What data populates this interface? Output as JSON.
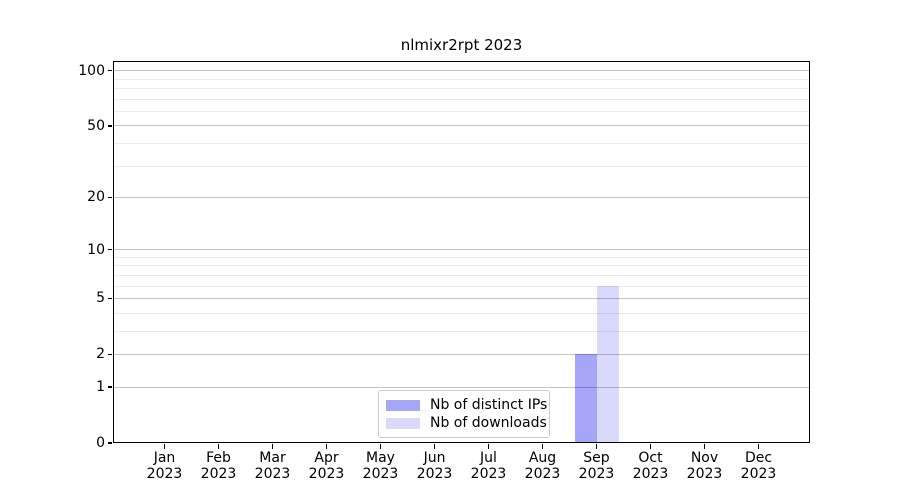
{
  "chart_data": {
    "type": "bar",
    "title": "nlmixr2rpt 2023",
    "categories": [
      "Jan 2023",
      "Feb 2023",
      "Mar 2023",
      "Apr 2023",
      "May 2023",
      "Jun 2023",
      "Jul 2023",
      "Aug 2023",
      "Sep 2023",
      "Oct 2023",
      "Nov 2023",
      "Dec 2023"
    ],
    "series": [
      {
        "name": "Nb of distinct IPs",
        "color": "rgba(0,0,238,0.35)",
        "values": [
          0,
          0,
          0,
          0,
          0,
          0,
          0,
          0,
          2,
          0,
          0,
          0
        ]
      },
      {
        "name": "Nb of downloads",
        "color": "rgba(0,0,238,0.15)",
        "values": [
          0,
          0,
          0,
          0,
          0,
          0,
          0,
          0,
          6,
          0,
          0,
          0
        ]
      }
    ],
    "xlabel": "",
    "ylabel": "",
    "yscale": "log1p",
    "ylim": [
      0,
      113
    ],
    "yticks": [
      0,
      1,
      2,
      5,
      10,
      20,
      50,
      100
    ],
    "ytick_labels": [
      "0",
      "1",
      "2",
      "5",
      "10",
      "20",
      "50",
      "100"
    ],
    "minor_gridlines": [
      3,
      4,
      6,
      7,
      8,
      9,
      30,
      40,
      60,
      70,
      80,
      90
    ],
    "grid": true,
    "legend_position": "lower center"
  },
  "colors": {
    "spine": "#000000",
    "grid_major": "#c3c3c3",
    "grid_minor": "#eaeaea",
    "text": "#000000",
    "legend_border": "#cccccc",
    "background": "#ffffff"
  }
}
